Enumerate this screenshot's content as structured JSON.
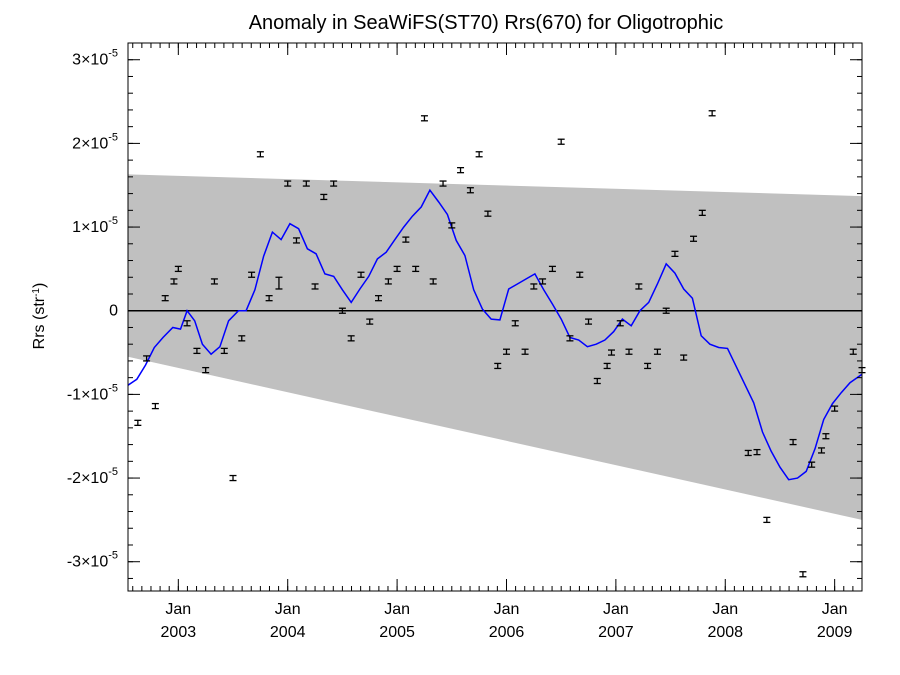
{
  "chart_data": {
    "type": "scatter",
    "title": "Anomaly in SeaWiFS(ST70) Rrs(670) for Oligotrophic",
    "ylabel_main": "Rrs (str",
    "ylabel_sup": "-1",
    "ylabel_end": ")",
    "xlim": [
      2002.54,
      2009.25
    ],
    "ylim": [
      -3.35e-05,
      3.2e-05
    ],
    "yticks": [
      {
        "value": 3e-05,
        "mantissa": "3×10",
        "exp": "-5"
      },
      {
        "value": 2e-05,
        "mantissa": "2×10",
        "exp": "-5"
      },
      {
        "value": 1e-05,
        "mantissa": "1×10",
        "exp": "-5"
      },
      {
        "value": 0,
        "mantissa": "0",
        "exp": ""
      },
      {
        "value": -1e-05,
        "mantissa": "-1×10",
        "exp": "-5"
      },
      {
        "value": -2e-05,
        "mantissa": "-2×10",
        "exp": "-5"
      },
      {
        "value": -3e-05,
        "mantissa": "-3×10",
        "exp": "-5"
      }
    ],
    "xticks": [
      {
        "value": 2003.0,
        "month": "Jan",
        "year": "2003"
      },
      {
        "value": 2004.0,
        "month": "Jan",
        "year": "2004"
      },
      {
        "value": 2005.0,
        "month": "Jan",
        "year": "2005"
      },
      {
        "value": 2006.0,
        "month": "Jan",
        "year": "2006"
      },
      {
        "value": 2007.0,
        "month": "Jan",
        "year": "2007"
      },
      {
        "value": 2008.0,
        "month": "Jan",
        "year": "2008"
      },
      {
        "value": 2009.0,
        "month": "Jan",
        "year": "2009"
      }
    ],
    "band": {
      "upper": [
        [
          2002.54,
          1.63e-05
        ],
        [
          2009.25,
          1.37e-05
        ]
      ],
      "lower": [
        [
          2002.54,
          -5.5e-06
        ],
        [
          2009.25,
          -2.5e-05
        ]
      ],
      "color": "#c0c0c0"
    },
    "zero_line": 0,
    "series": [
      {
        "kind": "errorbar",
        "color": "#000000",
        "points": [
          [
            2002.63,
            -1.34e-05,
            3e-07
          ],
          [
            2002.71,
            -5.7e-06,
            3e-07
          ],
          [
            2002.79,
            -1.14e-05,
            3e-07
          ],
          [
            2002.88,
            1.5e-06,
            3e-07
          ],
          [
            2002.96,
            3.5e-06,
            3e-07
          ],
          [
            2003.0,
            5e-06,
            3e-07
          ],
          [
            2003.08,
            -1.5e-06,
            3e-07
          ],
          [
            2003.17,
            -4.8e-06,
            3e-07
          ],
          [
            2003.25,
            -7.1e-06,
            3e-07
          ],
          [
            2003.33,
            3.5e-06,
            3e-07
          ],
          [
            2003.42,
            -4.8e-06,
            3e-07
          ],
          [
            2003.5,
            -2e-05,
            3e-07
          ],
          [
            2003.58,
            -3.3e-06,
            3e-07
          ],
          [
            2003.67,
            4.3e-06,
            3e-07
          ],
          [
            2003.75,
            1.87e-05,
            3e-07
          ],
          [
            2003.83,
            1.5e-06,
            3e-07
          ],
          [
            2003.92,
            3.3e-06,
            7e-07
          ],
          [
            2004.0,
            1.52e-05,
            3e-07
          ],
          [
            2004.08,
            8.4e-06,
            3e-07
          ],
          [
            2004.17,
            1.52e-05,
            3e-07
          ],
          [
            2004.25,
            2.9e-06,
            3e-07
          ],
          [
            2004.33,
            1.36e-05,
            3e-07
          ],
          [
            2004.42,
            1.52e-05,
            3e-07
          ],
          [
            2004.5,
            0,
            3e-07
          ],
          [
            2004.58,
            -3.3e-06,
            3e-07
          ],
          [
            2004.67,
            4.3e-06,
            3e-07
          ],
          [
            2004.75,
            -1.3e-06,
            3e-07
          ],
          [
            2004.83,
            1.5e-06,
            3e-07
          ],
          [
            2004.92,
            3.5e-06,
            3e-07
          ],
          [
            2005.0,
            5e-06,
            3e-07
          ],
          [
            2005.08,
            8.5e-06,
            3e-07
          ],
          [
            2005.17,
            5e-06,
            3e-07
          ],
          [
            2005.25,
            2.3e-05,
            3e-07
          ],
          [
            2005.33,
            3.5e-06,
            3e-07
          ],
          [
            2005.42,
            1.52e-05,
            3e-07
          ],
          [
            2005.5,
            1.02e-05,
            3e-07
          ],
          [
            2005.58,
            1.68e-05,
            3e-07
          ],
          [
            2005.67,
            1.44e-05,
            3e-07
          ],
          [
            2005.75,
            1.87e-05,
            3e-07
          ],
          [
            2005.83,
            1.16e-05,
            3e-07
          ],
          [
            2005.92,
            -6.6e-06,
            3e-07
          ],
          [
            2006.0,
            -4.9e-06,
            3e-07
          ],
          [
            2006.08,
            -1.5e-06,
            3e-07
          ],
          [
            2006.17,
            -4.9e-06,
            3e-07
          ],
          [
            2006.25,
            2.9e-06,
            3e-07
          ],
          [
            2006.33,
            3.5e-06,
            3e-07
          ],
          [
            2006.42,
            5e-06,
            3e-07
          ],
          [
            2006.5,
            2.02e-05,
            3e-07
          ],
          [
            2006.58,
            -3.3e-06,
            3e-07
          ],
          [
            2006.67,
            4.3e-06,
            3e-07
          ],
          [
            2006.75,
            -1.3e-06,
            3e-07
          ],
          [
            2006.83,
            -8.4e-06,
            3e-07
          ],
          [
            2006.92,
            -6.6e-06,
            3e-07
          ],
          [
            2006.96,
            -5e-06,
            3e-07
          ],
          [
            2007.04,
            -1.5e-06,
            3e-07
          ],
          [
            2007.12,
            -4.9e-06,
            3e-07
          ],
          [
            2007.21,
            2.9e-06,
            3e-07
          ],
          [
            2007.29,
            -6.6e-06,
            3e-07
          ],
          [
            2007.38,
            -4.9e-06,
            3e-07
          ],
          [
            2007.46,
            0,
            3e-07
          ],
          [
            2007.54,
            6.8e-06,
            3e-07
          ],
          [
            2007.62,
            -5.6e-06,
            3e-07
          ],
          [
            2007.71,
            8.6e-06,
            3e-07
          ],
          [
            2007.79,
            1.17e-05,
            3e-07
          ],
          [
            2007.88,
            2.36e-05,
            3e-07
          ],
          [
            2008.21,
            -1.7e-05,
            3e-07
          ],
          [
            2008.29,
            -1.69e-05,
            3e-07
          ],
          [
            2008.38,
            -2.5e-05,
            3e-07
          ],
          [
            2008.62,
            -1.57e-05,
            3e-07
          ],
          [
            2008.71,
            -3.15e-05,
            3e-07
          ],
          [
            2008.79,
            -1.84e-05,
            3e-07
          ],
          [
            2008.88,
            -1.67e-05,
            3e-07
          ],
          [
            2008.92,
            -1.5e-05,
            3e-07
          ],
          [
            2009.0,
            -1.17e-05,
            3e-07
          ],
          [
            2009.17,
            -4.9e-06,
            3e-07
          ],
          [
            2009.25,
            -7.1e-06,
            3e-07
          ]
        ]
      },
      {
        "kind": "line",
        "color": "#0000ff",
        "x": [
          2002.54,
          2002.62,
          2002.7,
          2002.78,
          2002.86,
          2002.95,
          2003.02,
          2003.08,
          2003.15,
          2003.22,
          2003.3,
          2003.38,
          2003.46,
          2003.55,
          2003.62,
          2003.7,
          2003.78,
          2003.86,
          2003.94,
          2004.02,
          2004.1,
          2004.18,
          2004.26,
          2004.34,
          2004.42,
          2004.5,
          2004.58,
          2004.66,
          2004.74,
          2004.82,
          2004.9,
          2004.98,
          2005.06,
          2005.14,
          2005.22,
          2005.3,
          2005.38,
          2005.46,
          2005.54,
          2005.62,
          2005.7,
          2005.78,
          2005.86,
          2005.94,
          2006.02,
          2006.1,
          2006.18,
          2006.26,
          2006.34,
          2006.42,
          2006.5,
          2006.58,
          2006.66,
          2006.74,
          2006.82,
          2006.9,
          2006.98,
          2007.06,
          2007.14,
          2007.22,
          2007.3,
          2007.38,
          2007.46,
          2007.54,
          2007.62,
          2007.7,
          2007.78,
          2007.86,
          2007.94,
          2008.02,
          2008.26,
          2008.34,
          2008.42,
          2008.5,
          2008.58,
          2008.66,
          2008.74,
          2008.82,
          2008.9,
          2008.98,
          2009.06,
          2009.14,
          2009.25
        ],
        "values": [
          -8.9e-06,
          -8.2e-06,
          -6.5e-06,
          -4.4e-06,
          -3.2e-06,
          -2e-06,
          -2.2e-06,
          0.0,
          -1.2e-06,
          -4e-06,
          -5.2e-06,
          -4.3e-06,
          -1.2e-06,
          0.0,
          0.0,
          2.5e-06,
          6.5e-06,
          9.4e-06,
          8.5e-06,
          1.04e-05,
          9.8e-06,
          7.4e-06,
          6.8e-06,
          4.4e-06,
          4.1e-06,
          2.5e-06,
          1e-06,
          2.6e-06,
          4.1e-06,
          6.2e-06,
          7e-06,
          8.5e-06,
          1e-05,
          1.13e-05,
          1.24e-05,
          1.44e-05,
          1.3e-05,
          1.15e-05,
          8.4e-06,
          6.6e-06,
          2.5e-06,
          2e-07,
          -1e-06,
          -1.1e-06,
          2.6e-06,
          3.2e-06,
          3.8e-06,
          4.4e-06,
          2.5e-06,
          8e-07,
          -1e-06,
          -3.2e-06,
          -3.5e-06,
          -4.3e-06,
          -4e-06,
          -3.5e-06,
          -2.5e-06,
          -1e-06,
          -1.8e-06,
          0.0,
          1e-06,
          3.2e-06,
          5.6e-06,
          4.5e-06,
          2.6e-06,
          1.5e-06,
          -3e-06,
          -4e-06,
          -4.4e-06,
          -4.5e-06,
          -1.1e-05,
          -1.45e-05,
          -1.68e-05,
          -1.87e-05,
          -2.02e-05,
          -2e-05,
          -1.92e-05,
          -1.65e-05,
          -1.3e-05,
          -1.11e-05,
          -9.8e-06,
          -8.6e-06,
          -7.6e-06
        ]
      }
    ]
  }
}
